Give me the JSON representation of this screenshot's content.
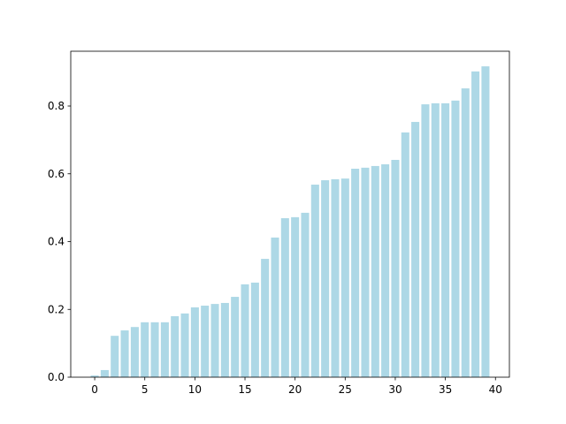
{
  "chart_data": {
    "type": "bar",
    "x": [
      0,
      1,
      2,
      3,
      4,
      5,
      6,
      7,
      8,
      9,
      10,
      11,
      12,
      13,
      14,
      15,
      16,
      17,
      18,
      19,
      20,
      21,
      22,
      23,
      24,
      25,
      26,
      27,
      28,
      29,
      30,
      31,
      32,
      33,
      34,
      35,
      36,
      37,
      38,
      39
    ],
    "values": [
      0.005,
      0.021,
      0.122,
      0.138,
      0.148,
      0.162,
      0.162,
      0.162,
      0.18,
      0.188,
      0.206,
      0.211,
      0.216,
      0.219,
      0.237,
      0.274,
      0.279,
      0.349,
      0.412,
      0.469,
      0.472,
      0.485,
      0.568,
      0.581,
      0.584,
      0.586,
      0.615,
      0.618,
      0.623,
      0.628,
      0.641,
      0.722,
      0.753,
      0.805,
      0.808,
      0.808,
      0.816,
      0.852,
      0.902,
      0.917
    ],
    "color": "#add8e6",
    "xlim": [
      -2.39,
      41.39
    ],
    "xticks": [
      0,
      5,
      10,
      15,
      20,
      25,
      30,
      35,
      40
    ],
    "ylim": [
      0,
      0.9616
    ],
    "yticks": [
      {
        "value": 0,
        "label": "0.0"
      },
      0.2,
      0.4,
      0.6,
      0.8
    ],
    "grid": false
  }
}
